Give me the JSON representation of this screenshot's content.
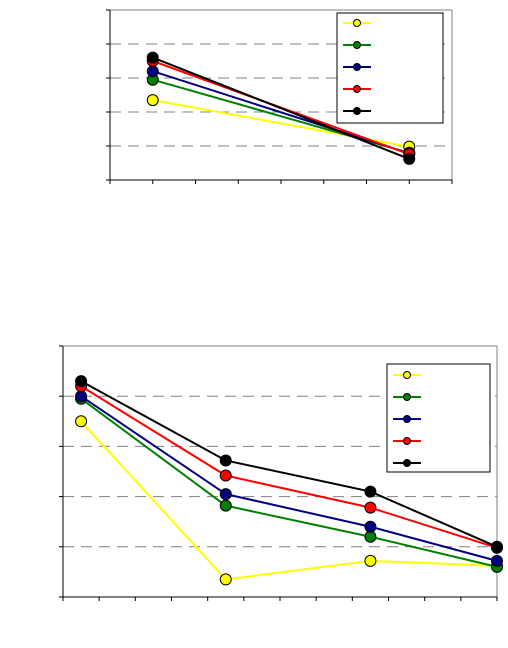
{
  "chart_data": [
    {
      "type": "line",
      "x": [
        1,
        7
      ],
      "xlim": [
        0,
        8
      ],
      "ylim": [
        0,
        5
      ],
      "grid": true,
      "legend": "top-right",
      "series": [
        {
          "color": "#ffff00",
          "values": [
            2.35,
            0.98
          ]
        },
        {
          "color": "#008000",
          "values": [
            2.95,
            0.8
          ]
        },
        {
          "color": "#000080",
          "values": [
            3.2,
            0.78
          ]
        },
        {
          "color": "#ff0000",
          "values": [
            3.5,
            0.76
          ]
        },
        {
          "color": "#000000",
          "values": [
            3.6,
            0.62
          ]
        }
      ]
    },
    {
      "type": "line",
      "x": [
        0.5,
        4.5,
        8.5,
        12
      ],
      "xlim": [
        0,
        12
      ],
      "ylim": [
        0,
        5
      ],
      "grid": true,
      "legend": "top-right",
      "series": [
        {
          "color": "#ffff00",
          "values": [
            3.5,
            0.35,
            0.72,
            0.62
          ]
        },
        {
          "color": "#008000",
          "values": [
            3.95,
            1.82,
            1.2,
            0.6
          ]
        },
        {
          "color": "#000080",
          "values": [
            4.0,
            2.05,
            1.4,
            0.72
          ]
        },
        {
          "color": "#ff0000",
          "values": [
            4.2,
            2.42,
            1.78,
            0.98
          ]
        },
        {
          "color": "#000000",
          "values": [
            4.3,
            2.72,
            2.1,
            1.0
          ]
        }
      ]
    }
  ]
}
